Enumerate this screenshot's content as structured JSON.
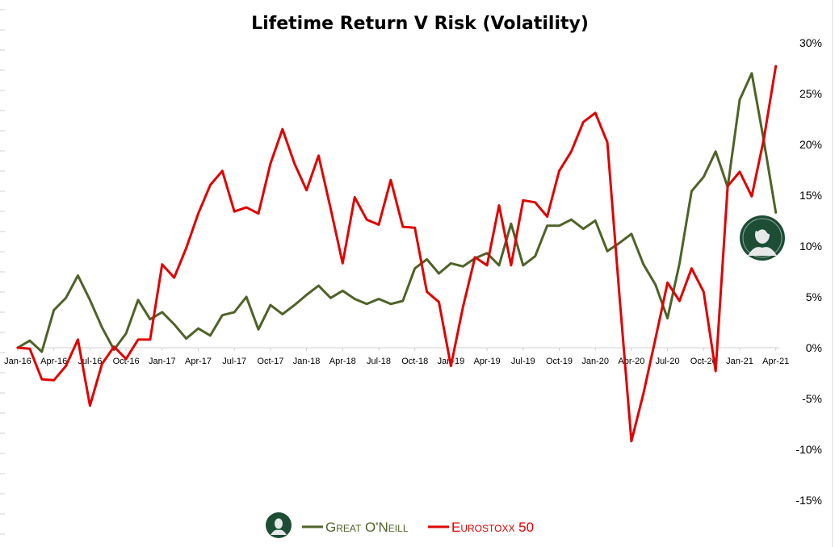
{
  "chart_data": {
    "type": "line",
    "title": "Lifetime Return V Risk (Volatility)",
    "xlabel": "",
    "ylabel": "",
    "y_axis_side": "right",
    "ylim": [
      -15,
      30
    ],
    "y_ticks": [
      -15,
      -10,
      -5,
      0,
      5,
      10,
      15,
      20,
      25,
      30
    ],
    "y_tick_labels": [
      "-15%",
      "-10%",
      "-5%",
      "0%",
      "5%",
      "10%",
      "15%",
      "20%",
      "25%",
      "30%"
    ],
    "x_tick_labels": [
      "Jan-16",
      "Apr-16",
      "Jul-16",
      "Oct-16",
      "Jan-17",
      "Apr-17",
      "Jul-17",
      "Oct-17",
      "Jan-18",
      "Apr-18",
      "Jul-18",
      "Oct-18",
      "Jan-19",
      "Apr-19",
      "Jul-19",
      "Oct-19",
      "Jan-20",
      "Apr-20",
      "Jul-20",
      "Oct-20",
      "Jan-21",
      "Apr-21"
    ],
    "x_tick_month_index": [
      0,
      3,
      6,
      9,
      12,
      15,
      18,
      21,
      24,
      27,
      30,
      33,
      36,
      39,
      42,
      45,
      48,
      51,
      54,
      57,
      60,
      63
    ],
    "grid": false,
    "legend_position": "bottom",
    "series": [
      {
        "name": "Great O'Neill",
        "color": "#4f6228",
        "values": [
          0,
          0.7,
          -0.4,
          3.7,
          4.9,
          7.1,
          4.7,
          2.0,
          -0.2,
          1.4,
          4.7,
          2.8,
          3.5,
          2.3,
          0.9,
          1.9,
          1.2,
          3.2,
          3.5,
          5.0,
          1.8,
          4.2,
          3.3,
          4.2,
          5.2,
          6.1,
          4.9,
          5.6,
          4.8,
          4.3,
          4.8,
          4.3,
          4.6,
          7.8,
          8.7,
          7.3,
          8.3,
          8.0,
          8.8,
          9.3,
          8.1,
          12.2,
          8.1,
          9.0,
          12.0,
          12.0,
          12.6,
          11.7,
          12.5,
          9.5,
          10.3,
          11.2,
          8.2,
          6.2,
          2.9,
          8.3,
          15.4,
          16.8,
          19.3,
          15.8,
          24.4,
          27.0,
          20.4,
          13.3
        ]
      },
      {
        "name": "Eurostoxx 50",
        "color": "#e00000",
        "values": [
          0,
          -0.1,
          -3.1,
          -3.2,
          -1.8,
          0.8,
          -5.7,
          -1.6,
          0.1,
          -1.1,
          0.8,
          0.8,
          8.2,
          6.9,
          9.8,
          13.2,
          16.0,
          17.4,
          13.4,
          13.8,
          13.2,
          18.1,
          21.5,
          18.1,
          15.5,
          18.9,
          13.7,
          8.3,
          14.8,
          12.6,
          12.1,
          16.5,
          11.9,
          11.8,
          5.5,
          4.5,
          -1.8,
          4.0,
          8.9,
          8.1,
          14.0,
          8.1,
          14.5,
          14.3,
          12.9,
          17.4,
          19.3,
          22.2,
          23.1,
          20.2,
          5.2,
          -9.2,
          -4.5,
          0.9,
          6.4,
          4.6,
          7.8,
          5.5,
          -2.3,
          15.9,
          17.3,
          14.9,
          20.5,
          27.7
        ]
      }
    ]
  },
  "legend": {
    "items": [
      "Great O'Neill",
      "Eurostoxx 50"
    ]
  },
  "logo_icon": "portrait-emblem-icon"
}
